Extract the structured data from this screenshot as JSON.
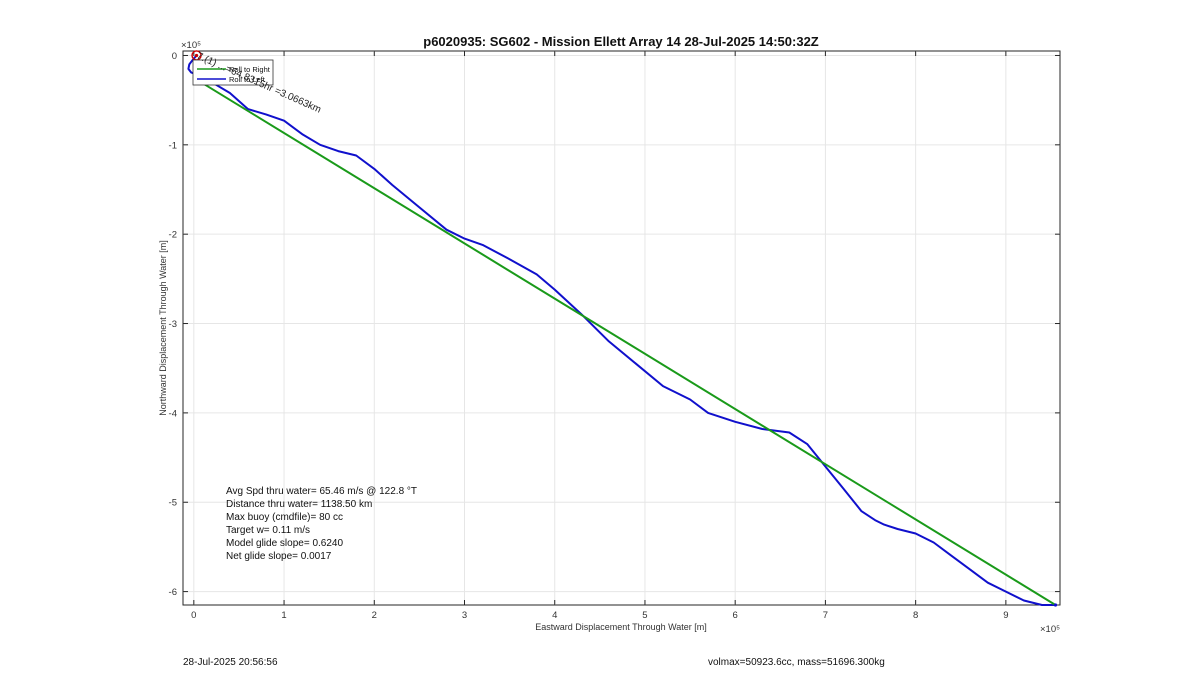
{
  "chart_data": {
    "type": "line",
    "title": "p6020935: SG602 - Mission Ellett Array 14 28-Jul-2025 14:50:32Z",
    "xlabel": "Eastward Displacement Through Water [m]",
    "ylabel": "Northward Displacement Through Water [m]",
    "x_exponent_label": "×10⁵",
    "y_exponent_label": "×10⁵",
    "x_scale": 100000,
    "y_scale": 100000,
    "xlim": [
      -0.12,
      9.6
    ],
    "ylim": [
      -6.15,
      0.05
    ],
    "x_ticks": [
      0,
      1,
      2,
      3,
      4,
      5,
      6,
      7,
      8,
      9
    ],
    "y_ticks": [
      0,
      -1,
      -2,
      -3,
      -4,
      -5,
      -6
    ],
    "grid": true,
    "legend_position": "top-left",
    "legend": [
      "Roll to Right",
      "Roll to Left"
    ],
    "series": [
      {
        "color": "#1010cc",
        "x": [
          0.03,
          -0.02,
          -0.05,
          -0.06,
          -0.03,
          0.05,
          0.2,
          0.4,
          0.6,
          0.8,
          1.0,
          1.2,
          1.4,
          1.6,
          1.8,
          2.0,
          2.2,
          2.5,
          2.8,
          3.0,
          3.2,
          3.5,
          3.8,
          4.0,
          4.3,
          4.6,
          4.9,
          5.2,
          5.5,
          5.7,
          6.0,
          6.3,
          6.6,
          6.8,
          7.0,
          7.2,
          7.4,
          7.55,
          7.65,
          7.8,
          8.0,
          8.2,
          8.4,
          8.6,
          8.8,
          9.0,
          9.2,
          9.4,
          9.55
        ],
        "y": [
          0.0,
          -0.06,
          -0.1,
          -0.15,
          -0.19,
          -0.22,
          -0.3,
          -0.42,
          -0.6,
          -0.66,
          -0.73,
          -0.88,
          -1.0,
          -1.07,
          -1.12,
          -1.27,
          -1.45,
          -1.7,
          -1.95,
          -2.05,
          -2.12,
          -2.28,
          -2.45,
          -2.62,
          -2.9,
          -3.2,
          -3.45,
          -3.7,
          -3.85,
          -4.0,
          -4.1,
          -4.18,
          -4.22,
          -4.35,
          -4.6,
          -4.85,
          -5.1,
          -5.2,
          -5.25,
          -5.3,
          -5.35,
          -5.45,
          -5.6,
          -5.75,
          -5.9,
          -6.0,
          -6.1,
          -6.15,
          -6.15
        ],
        "linewidth": 2
      },
      {
        "color": "#1a9a1a",
        "x": [
          0.0,
          9.55
        ],
        "y": [
          -0.25,
          -6.15
        ],
        "linewidth": 2
      }
    ],
    "annotations": {
      "start_marker_color": "#cc0000",
      "segment_label": "7.(1) ...=64.8315hr =3.0663km",
      "stats": [
        "Avg Spd thru water= 65.46 m/s @ 122.8 °T",
        "Distance thru water= 1138.50 km",
        "Max buoy (cmdfile)= 80 cc",
        "Target w= 0.11 m/s",
        "Model glide slope= 0.6240",
        "Net glide slope= 0.0017"
      ]
    },
    "footer": {
      "left": "28-Jul-2025 20:56:56",
      "right": "volmax=50923.6cc, mass=51696.300kg"
    }
  }
}
